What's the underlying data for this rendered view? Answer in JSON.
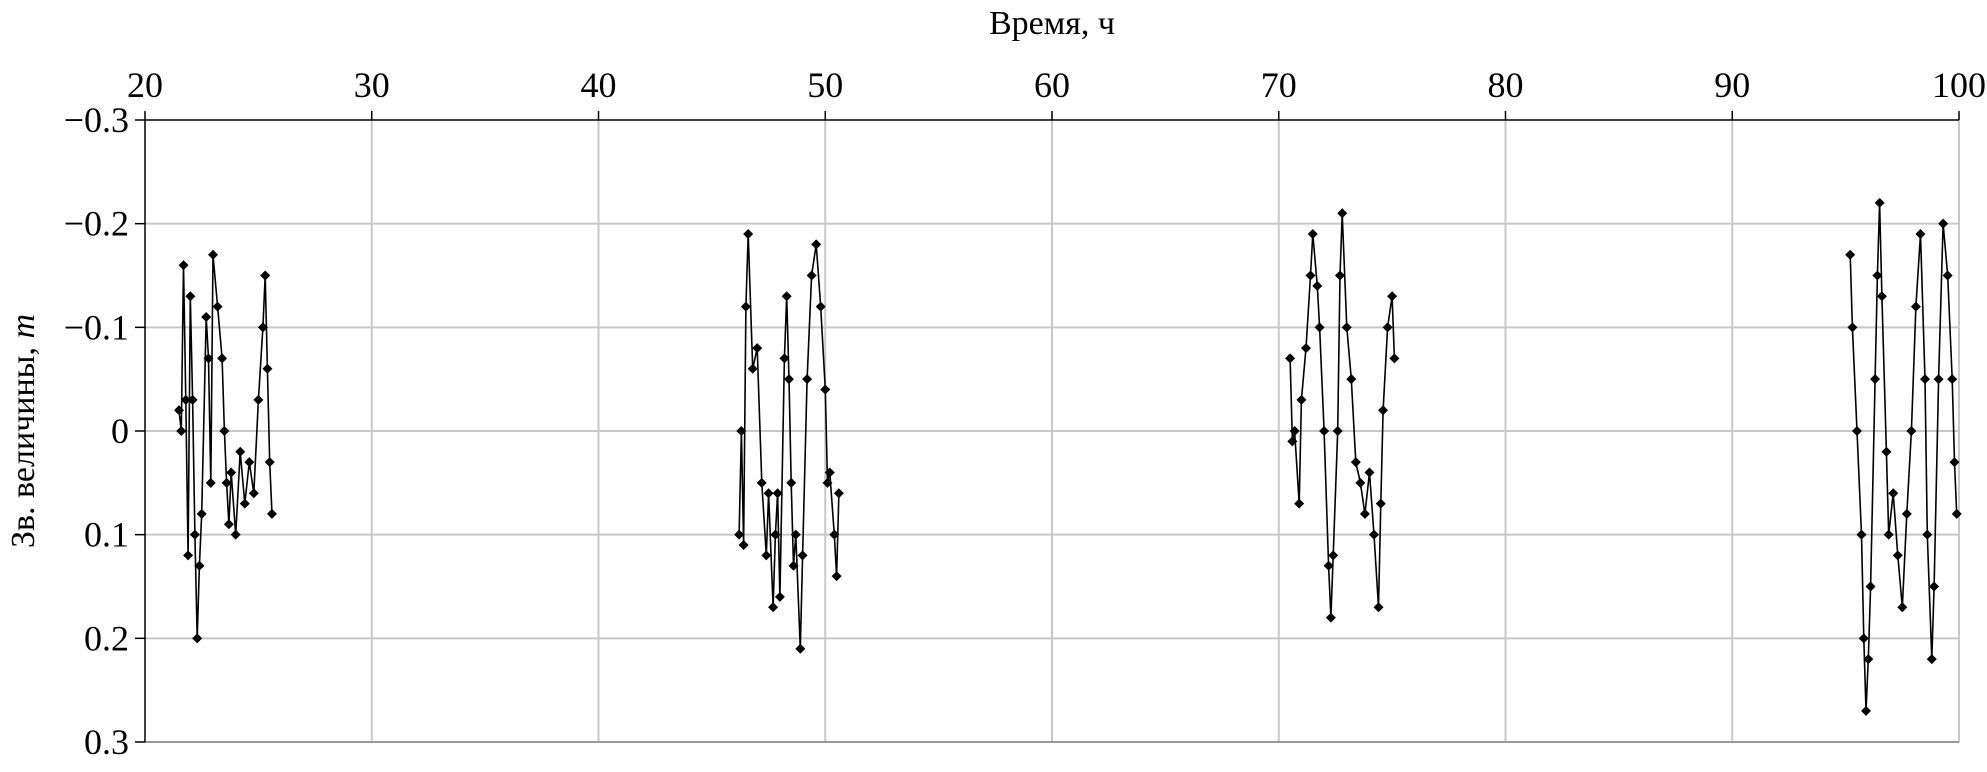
{
  "chart_data": {
    "type": "line",
    "title": "",
    "xlabel": "Время, ч",
    "ylabel": "Зв. величины, ",
    "ylabel_italic": "m",
    "xlim": [
      20,
      100
    ],
    "ylim": [
      -0.3,
      0.3
    ],
    "y_inverted": true,
    "x_axis_position": "top",
    "grid": true,
    "x_ticks": [
      20,
      30,
      40,
      50,
      60,
      70,
      80,
      90,
      100
    ],
    "x_tick_labels": [
      "20",
      "30",
      "40",
      "50",
      "60",
      "70",
      "80",
      "90",
      "100"
    ],
    "y_ticks": [
      -0.3,
      -0.2,
      -0.1,
      0,
      0.1,
      0.2,
      0.3
    ],
    "y_tick_labels": [
      "−0.3",
      "−0.2",
      "−0.1",
      "0",
      "0.1",
      "0.2",
      "0.3"
    ],
    "colors": {
      "series": "#000000",
      "grid": "#c8c8c8",
      "axis": "#000000"
    },
    "marker": "diamond",
    "series": [
      {
        "points": [
          [
            21.5,
            -0.02
          ],
          [
            21.6,
            0.0
          ],
          [
            21.7,
            -0.16
          ],
          [
            21.8,
            -0.03
          ],
          [
            21.9,
            0.12
          ],
          [
            22.0,
            -0.13
          ],
          [
            22.1,
            -0.03
          ],
          [
            22.2,
            0.1
          ],
          [
            22.3,
            0.2
          ],
          [
            22.4,
            0.13
          ],
          [
            22.5,
            0.08
          ],
          [
            22.7,
            -0.11
          ],
          [
            22.8,
            -0.07
          ],
          [
            22.9,
            0.05
          ],
          [
            23.0,
            -0.17
          ],
          [
            23.2,
            -0.12
          ],
          [
            23.4,
            -0.07
          ],
          [
            23.5,
            0.0
          ],
          [
            23.6,
            0.05
          ],
          [
            23.7,
            0.09
          ],
          [
            23.8,
            0.04
          ],
          [
            24.0,
            0.1
          ],
          [
            24.2,
            0.02
          ],
          [
            24.4,
            0.07
          ],
          [
            24.6,
            0.03
          ],
          [
            24.8,
            0.06
          ],
          [
            25.0,
            -0.03
          ],
          [
            25.2,
            -0.1
          ],
          [
            25.3,
            -0.15
          ],
          [
            25.4,
            -0.06
          ],
          [
            25.5,
            0.03
          ],
          [
            25.6,
            0.08
          ]
        ]
      },
      {
        "points": [
          [
            46.2,
            0.1
          ],
          [
            46.3,
            0.0
          ],
          [
            46.4,
            0.11
          ],
          [
            46.5,
            -0.12
          ],
          [
            46.6,
            -0.19
          ],
          [
            46.8,
            -0.06
          ],
          [
            47.0,
            -0.08
          ],
          [
            47.2,
            0.05
          ],
          [
            47.4,
            0.12
          ],
          [
            47.5,
            0.06
          ],
          [
            47.7,
            0.17
          ],
          [
            47.8,
            0.1
          ],
          [
            47.9,
            0.06
          ],
          [
            48.0,
            0.16
          ],
          [
            48.2,
            -0.07
          ],
          [
            48.3,
            -0.13
          ],
          [
            48.4,
            -0.05
          ],
          [
            48.5,
            0.05
          ],
          [
            48.6,
            0.13
          ],
          [
            48.7,
            0.1
          ],
          [
            48.9,
            0.21
          ],
          [
            49.0,
            0.12
          ],
          [
            49.2,
            -0.05
          ],
          [
            49.4,
            -0.15
          ],
          [
            49.6,
            -0.18
          ],
          [
            49.8,
            -0.12
          ],
          [
            50.0,
            -0.04
          ],
          [
            50.1,
            0.05
          ],
          [
            50.2,
            0.04
          ],
          [
            50.4,
            0.1
          ],
          [
            50.5,
            0.14
          ],
          [
            50.6,
            0.06
          ]
        ]
      },
      {
        "points": [
          [
            70.5,
            -0.07
          ],
          [
            70.6,
            0.01
          ],
          [
            70.7,
            0.0
          ],
          [
            70.9,
            0.07
          ],
          [
            71.0,
            -0.03
          ],
          [
            71.2,
            -0.08
          ],
          [
            71.4,
            -0.15
          ],
          [
            71.5,
            -0.19
          ],
          [
            71.7,
            -0.14
          ],
          [
            71.8,
            -0.1
          ],
          [
            72.0,
            0.0
          ],
          [
            72.2,
            0.13
          ],
          [
            72.3,
            0.18
          ],
          [
            72.4,
            0.12
          ],
          [
            72.6,
            0.0
          ],
          [
            72.7,
            -0.15
          ],
          [
            72.8,
            -0.21
          ],
          [
            73.0,
            -0.1
          ],
          [
            73.2,
            -0.05
          ],
          [
            73.4,
            0.03
          ],
          [
            73.6,
            0.05
          ],
          [
            73.8,
            0.08
          ],
          [
            74.0,
            0.04
          ],
          [
            74.2,
            0.1
          ],
          [
            74.4,
            0.17
          ],
          [
            74.5,
            0.07
          ],
          [
            74.6,
            -0.02
          ],
          [
            74.8,
            -0.1
          ],
          [
            75.0,
            -0.13
          ],
          [
            75.1,
            -0.07
          ]
        ]
      },
      {
        "points": [
          [
            95.2,
            -0.17
          ],
          [
            95.3,
            -0.1
          ],
          [
            95.5,
            0.0
          ],
          [
            95.7,
            0.1
          ],
          [
            95.8,
            0.2
          ],
          [
            95.9,
            0.27
          ],
          [
            96.0,
            0.22
          ],
          [
            96.1,
            0.15
          ],
          [
            96.3,
            -0.05
          ],
          [
            96.4,
            -0.15
          ],
          [
            96.5,
            -0.22
          ],
          [
            96.6,
            -0.13
          ],
          [
            96.8,
            0.02
          ],
          [
            96.9,
            0.1
          ],
          [
            97.1,
            0.06
          ],
          [
            97.3,
            0.12
          ],
          [
            97.5,
            0.17
          ],
          [
            97.7,
            0.08
          ],
          [
            97.9,
            0.0
          ],
          [
            98.1,
            -0.12
          ],
          [
            98.3,
            -0.19
          ],
          [
            98.5,
            -0.05
          ],
          [
            98.6,
            0.1
          ],
          [
            98.8,
            0.22
          ],
          [
            98.9,
            0.15
          ],
          [
            99.1,
            -0.05
          ],
          [
            99.3,
            -0.2
          ],
          [
            99.5,
            -0.15
          ],
          [
            99.7,
            -0.05
          ],
          [
            99.8,
            0.03
          ],
          [
            99.9,
            0.08
          ]
        ]
      }
    ]
  }
}
